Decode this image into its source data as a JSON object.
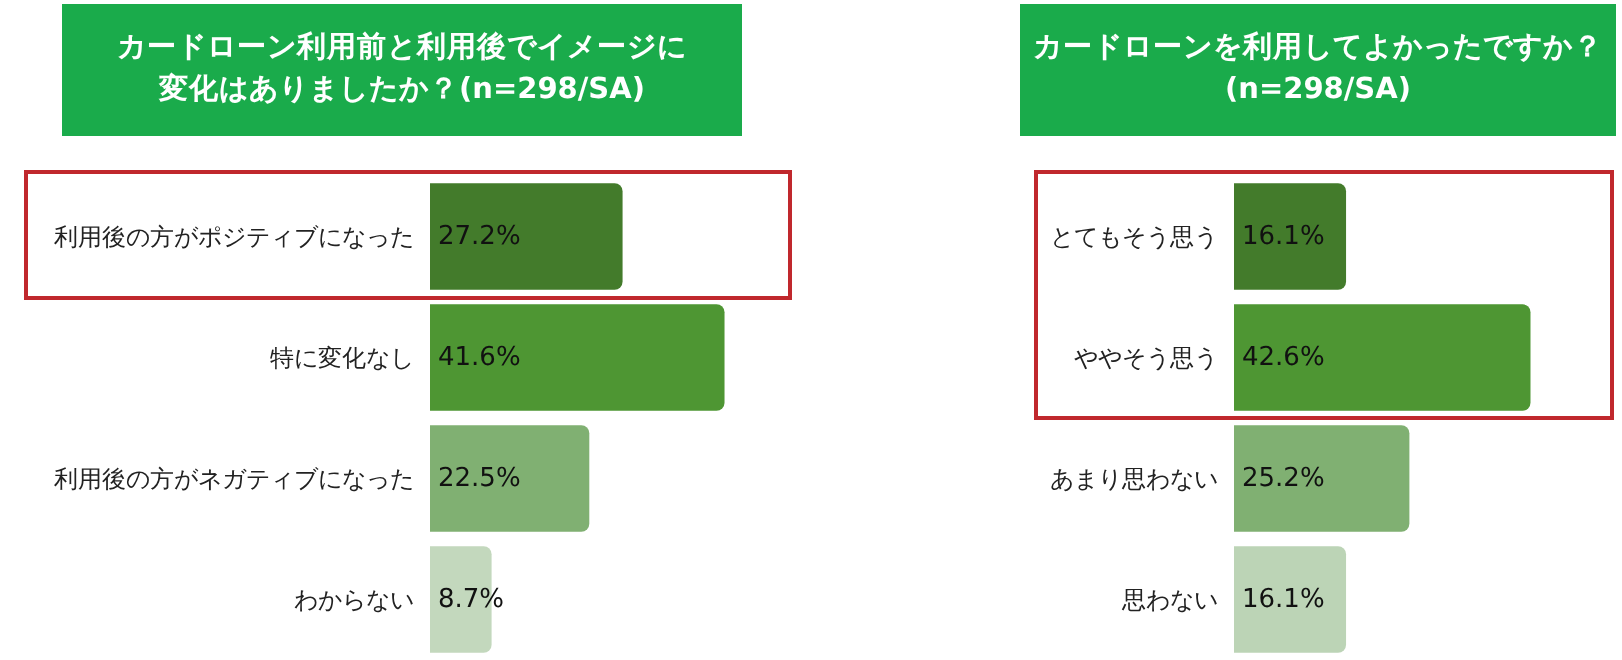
{
  "chart_data": [
    {
      "type": "bar",
      "orientation": "horizontal",
      "title": "カードローン利用前と利用後でイメージに変化はありましたか？(n=298/SA)",
      "categories": [
        "利用後の方がポジティブになった",
        "特に変化なし",
        "利用後の方がネガティブになった",
        "わからない"
      ],
      "values": [
        27.2,
        41.6,
        22.5,
        8.7
      ],
      "colors": [
        "#437b2b",
        "#4e9633",
        "#80b072",
        "#c3d8bd"
      ],
      "value_labels": [
        "27.2%",
        "41.6%",
        "22.5%",
        "8.7%"
      ]
    },
    {
      "type": "bar",
      "orientation": "horizontal",
      "title": "カードローンを利用してよかったですか？(n=298/SA)",
      "categories": [
        "とてもそう思う",
        "ややそう思う",
        "あまり思わない",
        "思わない"
      ],
      "values": [
        16.1,
        42.6,
        25.2,
        16.1
      ],
      "colors": [
        "#437b2b",
        "#4e9633",
        "#80b072",
        "#bcd4b6"
      ],
      "value_labels": [
        "16.1%",
        "42.6%",
        "25.2%",
        "16.1%"
      ]
    }
  ]
}
